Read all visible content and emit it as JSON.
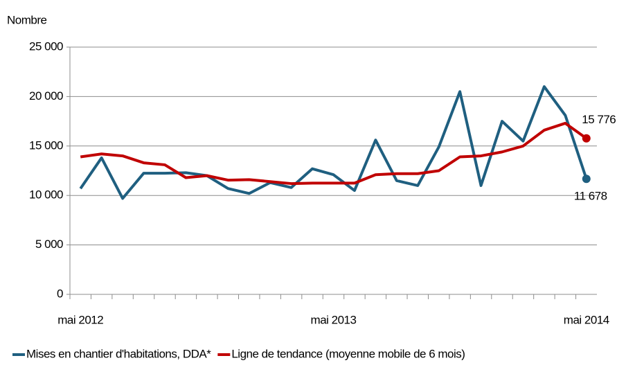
{
  "chart_data": {
    "type": "line",
    "y_axis_label": "Nombre",
    "categories": [
      "mai 2012",
      null,
      null,
      null,
      null,
      null,
      null,
      null,
      null,
      null,
      null,
      null,
      "mai 2013",
      null,
      null,
      null,
      null,
      null,
      null,
      null,
      null,
      null,
      null,
      null,
      "mai 2014"
    ],
    "series": [
      {
        "name": "Mises en chantier d'habitations, DDA*",
        "color": "#1f5f80",
        "values": [
          10700,
          13800,
          9700,
          12250,
          12250,
          12300,
          12000,
          10700,
          10200,
          11300,
          10800,
          12700,
          12100,
          10500,
          15600,
          11500,
          11000,
          14900,
          20500,
          11000,
          17500,
          15500,
          21000,
          18100,
          11678
        ],
        "value_labels": [
          null,
          null,
          null,
          null,
          null,
          null,
          null,
          null,
          null,
          null,
          null,
          null,
          null,
          null,
          null,
          null,
          null,
          null,
          null,
          null,
          null,
          null,
          null,
          null,
          "11 678"
        ]
      },
      {
        "name": "Ligne de tendance (moyenne mobile de 6 mois)",
        "color": "#c00000",
        "values": [
          13900,
          14200,
          14000,
          13300,
          13100,
          11800,
          12000,
          11550,
          11600,
          11400,
          11200,
          11250,
          11250,
          11250,
          12100,
          12200,
          12200,
          12500,
          13900,
          14000,
          14400,
          15000,
          16600,
          17300,
          15776
        ],
        "value_labels": [
          null,
          null,
          null,
          null,
          null,
          null,
          null,
          null,
          null,
          null,
          null,
          null,
          null,
          null,
          null,
          null,
          null,
          null,
          null,
          null,
          null,
          null,
          null,
          null,
          "15 776"
        ]
      }
    ],
    "ylim": [
      0,
      25000
    ],
    "yticks": [
      0,
      {
        "value": 5000,
        "label": "5 000"
      },
      {
        "value": 10000,
        "label": "10 000"
      },
      {
        "value": 15000,
        "label": "15 000"
      },
      {
        "value": 20000,
        "label": "20 000"
      },
      {
        "value": 25000,
        "label": "25 000"
      }
    ],
    "grid": true,
    "legend": "bottom"
  }
}
